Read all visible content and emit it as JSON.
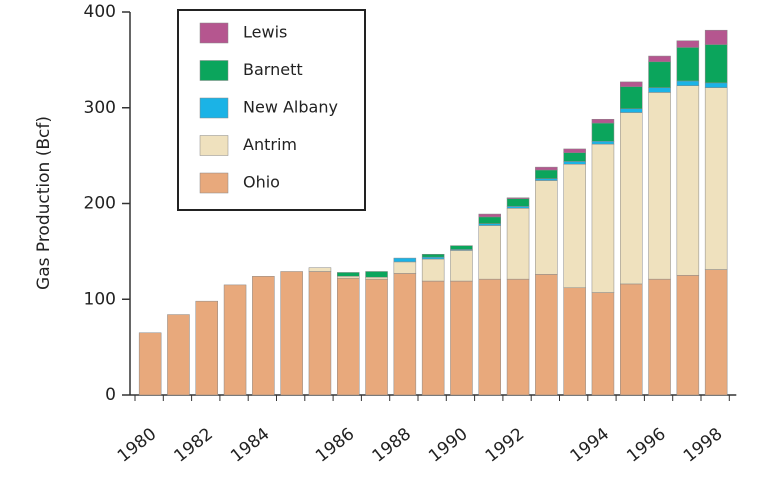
{
  "chart_data": {
    "type": "stacked-bar",
    "y_label": "Gas Production (Bcf)",
    "categories": [
      "1980",
      null,
      "1982",
      null,
      "1984",
      null,
      null,
      "1986",
      null,
      "1988",
      null,
      "1990",
      null,
      "1992",
      null,
      null,
      "1994",
      null,
      "1996",
      null,
      "1998"
    ],
    "series": [
      {
        "name": "Ohio",
        "color": "#e8a97c",
        "values": [
          65,
          84,
          98,
          115,
          124,
          129,
          129,
          122,
          121,
          127,
          119,
          119,
          121,
          121,
          126,
          112,
          107,
          116,
          121,
          125,
          131
        ]
      },
      {
        "name": "Antrim",
        "color": "#efe1be",
        "values": [
          0,
          0,
          0,
          0,
          0,
          0,
          4,
          2,
          2,
          12,
          23,
          32,
          56,
          74,
          98,
          129,
          155,
          179,
          195,
          198,
          190
        ]
      },
      {
        "name": "New Albany",
        "color": "#1bb3e6",
        "values": [
          0,
          0,
          0,
          0,
          0,
          0,
          0,
          0,
          0,
          4,
          2,
          1,
          2,
          2,
          2,
          3,
          3,
          4,
          5,
          5,
          5
        ]
      },
      {
        "name": "Barnett",
        "color": "#0ba55c",
        "values": [
          0,
          0,
          0,
          0,
          0,
          0,
          0,
          4,
          6,
          0,
          3,
          4,
          7,
          8,
          9,
          9,
          19,
          23,
          27,
          35,
          40
        ]
      },
      {
        "name": "Lewis",
        "color": "#b5568f",
        "values": [
          0,
          0,
          0,
          0,
          0,
          0,
          0,
          0,
          0,
          0,
          0,
          0,
          3,
          1,
          3,
          4,
          4,
          5,
          6,
          7,
          15
        ]
      }
    ],
    "ylim": [
      0,
      400
    ],
    "yticks": [
      0,
      100,
      200,
      300,
      400
    ],
    "legend": "upper-left"
  }
}
